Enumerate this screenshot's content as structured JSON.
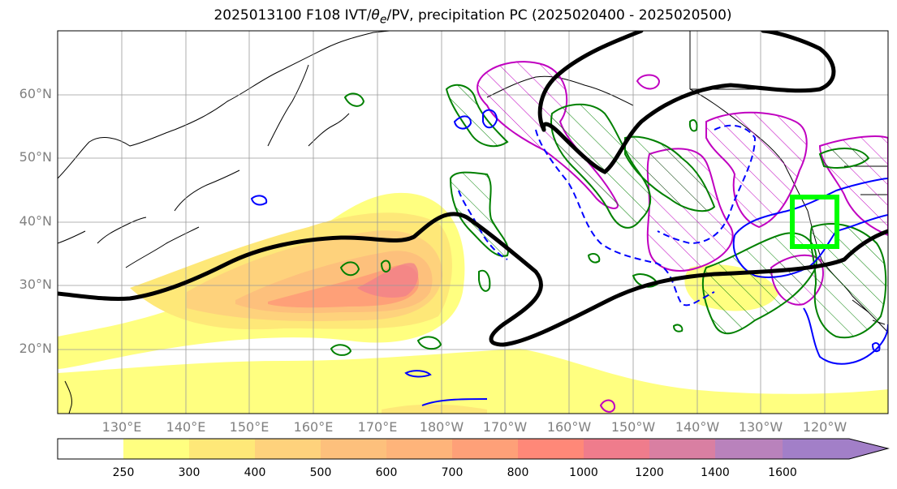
{
  "title": {
    "prefix": "2025013100 F108 IVT/",
    "theta": "θ",
    "theta_sub": "e",
    "suffix": "/PV, precipitation PC (2025020400 - 2025020500)"
  },
  "lat_labels": [
    "60°N",
    "50°N",
    "40°N",
    "30°N",
    "20°N"
  ],
  "lon_labels": [
    "130°E",
    "140°E",
    "150°E",
    "160°E",
    "170°E",
    "180°W",
    "170°W",
    "160°W",
    "150°W",
    "140°W",
    "130°W",
    "120°W"
  ],
  "colorbar": {
    "ticks": [
      "250",
      "300",
      "400",
      "500",
      "600",
      "700",
      "800",
      "1000",
      "1200",
      "1400",
      "1600"
    ],
    "colors": [
      "#ffffff",
      "#ffff80",
      "#fee878",
      "#fed27c",
      "#fdc07c",
      "#feb47a",
      "#fea078",
      "#ff8878",
      "#ef7c8c",
      "#d97fa2",
      "#b982bc",
      "#a27fc8"
    ]
  },
  "colors": {
    "jet_contour": "#000000",
    "green_contours": "#008000",
    "blue_contours": "#0000ff",
    "magenta_contours": "#c000c0",
    "highlight_box": "#00ff00",
    "grid": "#9a9a9a"
  }
}
